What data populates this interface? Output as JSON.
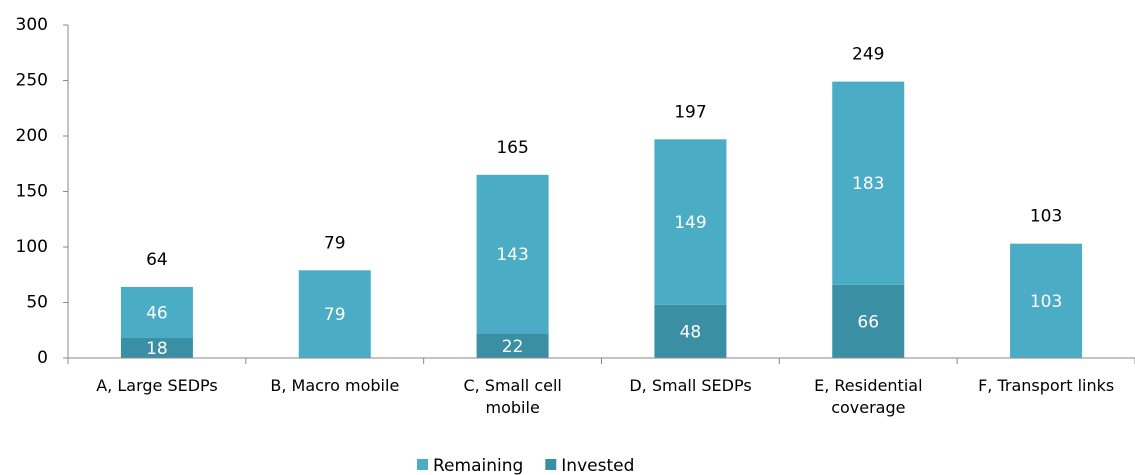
{
  "chart_data": {
    "type": "stacked_bar",
    "categories": [
      "A, Large SEDPs",
      "B, Macro mobile",
      "C, Small cell\nmobile",
      "D, Small SEDPs",
      "E, Residential\ncoverage",
      "F, Transport links"
    ],
    "series": [
      {
        "name": "Invested",
        "color": "#3a8fa5",
        "values": [
          18,
          0,
          22,
          48,
          66,
          0
        ]
      },
      {
        "name": "Remaining",
        "color": "#4bacc6",
        "values": [
          46,
          79,
          143,
          149,
          183,
          103
        ]
      }
    ],
    "totals": [
      64,
      79,
      165,
      197,
      249,
      103
    ],
    "legend_order": [
      "Remaining",
      "Invested"
    ],
    "ylim": [
      0,
      300
    ],
    "yticks": [
      0,
      50,
      100,
      150,
      200,
      250,
      300
    ],
    "grid": false,
    "legend": "bottom"
  }
}
